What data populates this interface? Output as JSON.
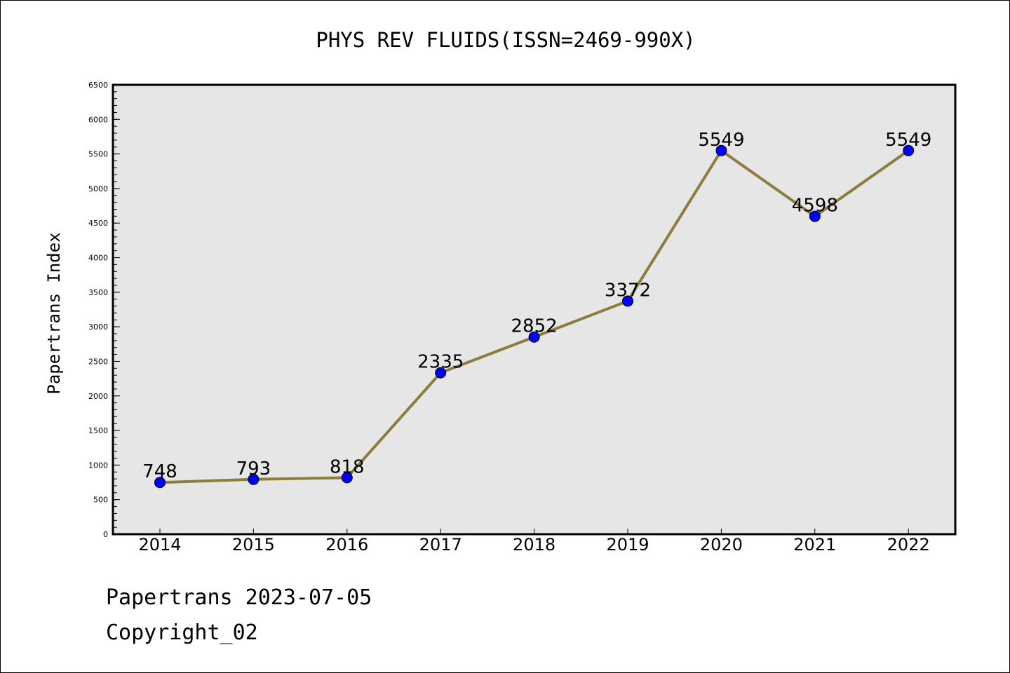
{
  "chart_data": {
    "type": "line",
    "title": "PHYS REV FLUIDS(ISSN=2469-990X)",
    "xlabel": "",
    "ylabel": "Papertrans Index",
    "categories": [
      "2014",
      "2015",
      "2016",
      "2017",
      "2018",
      "2019",
      "2020",
      "2021",
      "2022"
    ],
    "series": [
      {
        "values": [
          748,
          793,
          818,
          2335,
          2852,
          3372,
          5549,
          4598,
          5549
        ]
      }
    ],
    "data_labels": [
      "748",
      "793",
      "818",
      "2335",
      "2852",
      "3372",
      "5549",
      "4598",
      "5549"
    ],
    "ylim": [
      0,
      6500
    ],
    "y_ticks": [
      "0",
      "500",
      "1000",
      "1500",
      "2000",
      "2500",
      "3000",
      "3500",
      "4000",
      "4500",
      "5000",
      "5500",
      "6000",
      "6500"
    ],
    "grid": false,
    "legend": "none",
    "colors": {
      "line": "#8c7d3c",
      "marker": "#0000ff",
      "plot_background": "#e6e6e6"
    }
  },
  "footer": {
    "date_line": "Papertrans 2023-07-05",
    "copyright_line": "Copyright_02"
  }
}
